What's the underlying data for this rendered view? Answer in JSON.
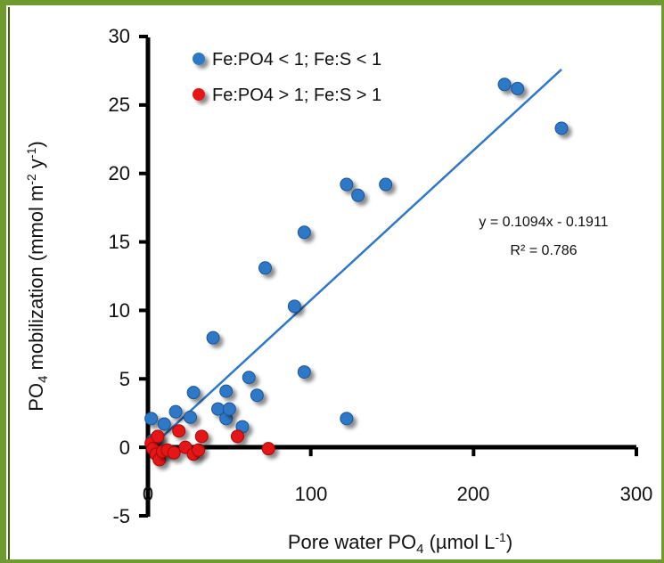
{
  "chart_data": {
    "type": "scatter",
    "title": "",
    "xlabel": "Pore water PO",
    "xlabel_sub": "4",
    "xlabel_unit": " (µmol L",
    "xlabel_unit_sup": "-1",
    "xlabel_close": ")",
    "ylabel": "PO",
    "ylabel_sub": "4",
    "ylabel_rest": " mobilization (mmol m",
    "ylabel_sup1": "-2",
    "ylabel_mid": " y",
    "ylabel_sup2": "-1",
    "ylabel_close": ")",
    "xlim": [
      0,
      300
    ],
    "ylim": [
      -5,
      30
    ],
    "xticks": [
      0,
      100,
      200,
      300
    ],
    "xtick_labels": [
      "0",
      "100",
      "200",
      "300"
    ],
    "yticks": [
      -5,
      0,
      5,
      10,
      15,
      20,
      25,
      30
    ],
    "ytick_labels": [
      "-5",
      "0",
      "5",
      "10",
      "15",
      "20",
      "25",
      "30"
    ],
    "grid": false,
    "legend_position": "top-left",
    "series": [
      {
        "name": "Fe:PO4 < 1; Fe:S < 1",
        "color": "#2f78c8",
        "points": [
          [
            2,
            2.1
          ],
          [
            10,
            1.7
          ],
          [
            17,
            2.6
          ],
          [
            26,
            2.2
          ],
          [
            28,
            4.0
          ],
          [
            40,
            8.0
          ],
          [
            43,
            2.8
          ],
          [
            48,
            2.1
          ],
          [
            48,
            4.1
          ],
          [
            50,
            2.8
          ],
          [
            58,
            1.5
          ],
          [
            62,
            5.1
          ],
          [
            67,
            3.8
          ],
          [
            72,
            13.1
          ],
          [
            90,
            10.3
          ],
          [
            96,
            15.7
          ],
          [
            96,
            5.5
          ],
          [
            122,
            19.2
          ],
          [
            122,
            2.1
          ],
          [
            129,
            18.4
          ],
          [
            146,
            19.2
          ],
          [
            219,
            26.5
          ],
          [
            227,
            26.2
          ],
          [
            254,
            23.3
          ],
          [
            3,
            0.5
          ],
          [
            5,
            0.6
          ]
        ]
      },
      {
        "name": "Fe:PO4 > 1; Fe:S > 1",
        "color": "#e61414",
        "points": [
          [
            2,
            0.3
          ],
          [
            3,
            -0.1
          ],
          [
            5,
            -0.5
          ],
          [
            6,
            0.8
          ],
          [
            7,
            -0.9
          ],
          [
            9,
            -0.3
          ],
          [
            12,
            -0.2
          ],
          [
            16,
            -0.4
          ],
          [
            19,
            1.2
          ],
          [
            23,
            0.0
          ],
          [
            28,
            -0.5
          ],
          [
            31,
            -0.2
          ],
          [
            33,
            0.8
          ],
          [
            55,
            0.8
          ],
          [
            74,
            -0.1
          ]
        ]
      }
    ],
    "fit": {
      "slope": 0.1094,
      "intercept": -0.1911,
      "x_range": [
        3,
        254
      ],
      "color": "#2f78c8",
      "equation_text": "y = 0.1094x - 0.1911",
      "r2_text": "R² = 0.786"
    }
  }
}
